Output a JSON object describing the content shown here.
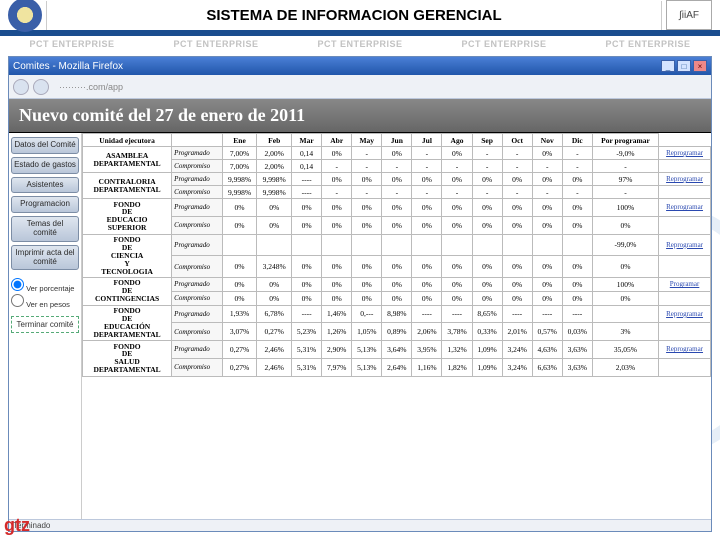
{
  "header": {
    "title": "SISTEMA DE INFORMACION GERENCIAL",
    "right_logo_text": "∫iiAF",
    "watermark": "PCT ENTERPRISE"
  },
  "browser": {
    "title": "Comites - Mozilla Firefox",
    "address": "·········.com/app",
    "status": "Terminado"
  },
  "page": {
    "heading": "Nuevo comité del 27 de enero de 2011"
  },
  "sidemenu": {
    "items": [
      "Datos del Comité",
      "Estado de gastos",
      "Asistentes",
      "Programacion",
      "Temas del comité",
      "Imprimir acta del comité"
    ],
    "radio1": "Ver porcentaje",
    "radio2": "Ver en pesos",
    "terminar": "Terminar comité"
  },
  "table": {
    "columns": [
      "Unidad ejecutora",
      "",
      "Ene",
      "Feb",
      "Mar",
      "Abr",
      "May",
      "Jun",
      "Jul",
      "Ago",
      "Sep",
      "Oct",
      "Nov",
      "Dic",
      "Por programar"
    ],
    "units": [
      {
        "name": "ASAMBLEA DEPARTAMENTAL",
        "rows": [
          {
            "label": "Programado",
            "cells": [
              "7,00%",
              "2,00%",
              "0,14",
              "0%",
              "-",
              "0%",
              "-",
              "0%",
              "-",
              "-",
              "0%",
              "-",
              "-9,0%"
            ],
            "link": "Reprogramar"
          },
          {
            "label": "Compromiso",
            "cells": [
              "7,00%",
              "2,00%",
              "0,14",
              "-",
              "-",
              "-",
              "-",
              "-",
              "-",
              "-",
              "-",
              "-",
              "-"
            ],
            "link": ""
          }
        ]
      },
      {
        "name": "CONTRALORIA DEPARTAMENTAL",
        "rows": [
          {
            "label": "Programado",
            "cells": [
              "9,998%",
              "9,998%",
              "----",
              "0%",
              "0%",
              "0%",
              "0%",
              "0%",
              "0%",
              "0%",
              "0%",
              "0%",
              "97%"
            ],
            "link": "Reprogramar"
          },
          {
            "label": "Compromiso",
            "cells": [
              "9,998%",
              "9,998%",
              "----",
              "-",
              "-",
              "-",
              "-",
              "-",
              "-",
              "-",
              "-",
              "-",
              "-"
            ],
            "link": ""
          }
        ]
      },
      {
        "name": "FONDO DE EDUCACIO SUPERIOR",
        "rows": [
          {
            "label": "Programado",
            "cells": [
              "0%",
              "0%",
              "0%",
              "0%",
              "0%",
              "0%",
              "0%",
              "0%",
              "0%",
              "0%",
              "0%",
              "0%",
              "100%"
            ],
            "link": "Reprogramar"
          },
          {
            "label": "Compromiso",
            "cells": [
              "0%",
              "0%",
              "0%",
              "0%",
              "0%",
              "0%",
              "0%",
              "0%",
              "0%",
              "0%",
              "0%",
              "0%",
              "0%"
            ],
            "link": ""
          }
        ]
      },
      {
        "name": "FONDO DE CIENCIA Y TECNOLOGIA",
        "rows": [
          {
            "label": "Programado",
            "cells": [
              "",
              "",
              "",
              "",
              "",
              "",
              "",
              "",
              "",
              "",
              "",
              "",
              "-99,0%"
            ],
            "link": "Reprogramar"
          },
          {
            "label": "Compromiso",
            "cells": [
              "0%",
              "3,248%",
              "0%",
              "0%",
              "0%",
              "0%",
              "0%",
              "0%",
              "0%",
              "0%",
              "0%",
              "0%",
              "0%"
            ],
            "link": ""
          }
        ]
      },
      {
        "name": "FONDO DE CONTINGENCIAS",
        "rows": [
          {
            "label": "Programado",
            "cells": [
              "0%",
              "0%",
              "0%",
              "0%",
              "0%",
              "0%",
              "0%",
              "0%",
              "0%",
              "0%",
              "0%",
              "0%",
              "100%"
            ],
            "link": "Programar"
          },
          {
            "label": "Compromiso",
            "cells": [
              "0%",
              "0%",
              "0%",
              "0%",
              "0%",
              "0%",
              "0%",
              "0%",
              "0%",
              "0%",
              "0%",
              "0%",
              "0%"
            ],
            "link": ""
          }
        ]
      },
      {
        "name": "FONDO DE EDUCACIÓN DEPARTAMENTAL",
        "rows": [
          {
            "label": "Programado",
            "cells": [
              "1,93%",
              "6,78%",
              "----",
              "1,46%",
              "0,---",
              "8,98%",
              "----",
              "----",
              "8,65%",
              "----",
              "----",
              "----",
              ""
            ],
            "link": "Reprogramar"
          },
          {
            "label": "Compromiso",
            "cells": [
              "3,07%",
              "0,27%",
              "5,23%",
              "1,26%",
              "1,05%",
              "0,89%",
              "2,06%",
              "3,78%",
              "0,33%",
              "2,01%",
              "0,57%",
              "0,03%",
              "3%"
            ],
            "link": ""
          }
        ]
      },
      {
        "name": "FONDO DE SALUD DEPARTAMENTAL",
        "rows": [
          {
            "label": "Programado",
            "cells": [
              "0,27%",
              "2,46%",
              "5,31%",
              "2,90%",
              "5,13%",
              "3,64%",
              "3,95%",
              "1,32%",
              "1,09%",
              "3,24%",
              "4,63%",
              "3,63%",
              "35,05%"
            ],
            "link": "Reprogramar"
          },
          {
            "label": "Compromiso",
            "cells": [
              "0,27%",
              "2,46%",
              "5,31%",
              "7,97%",
              "5,13%",
              "2,64%",
              "1,16%",
              "1,82%",
              "1,09%",
              "3,24%",
              "6,63%",
              "3,63%",
              "2,03%"
            ],
            "link": ""
          }
        ]
      }
    ],
    "header_bg": "#ffffff",
    "border_color": "#bbbbbb",
    "link_color": "#2a49b0"
  },
  "colors": {
    "brand_blue": "#1a4d8f",
    "titlebar_top": "#4a7fd6",
    "titlebar_bottom": "#2156aa",
    "sidebar_btn_top": "#dfe6ef",
    "sidebar_btn_bottom": "#b9c6d9",
    "gtz_red": "#d42a2a"
  },
  "gtz_logo": "gtz"
}
